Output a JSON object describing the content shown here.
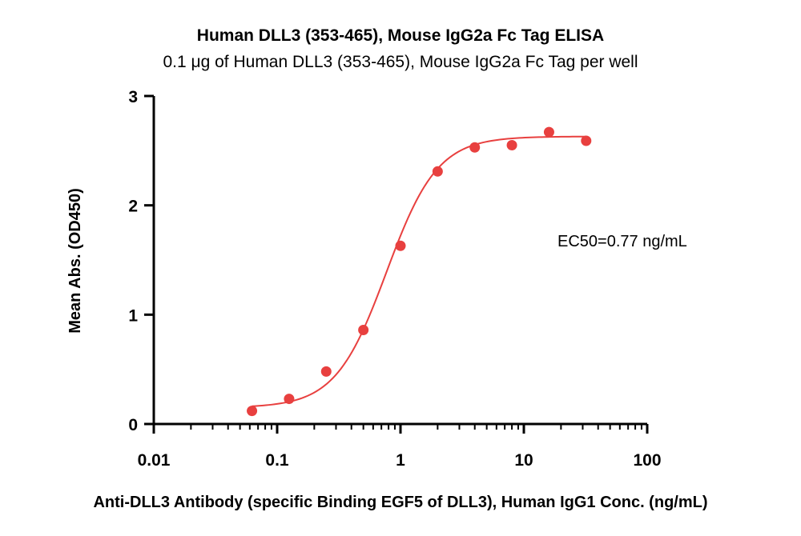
{
  "chart_data": {
    "type": "scatter",
    "title": "Human DLL3 (353-465), Mouse IgG2a Fc Tag ELISA",
    "subtitle": "0.1 μg of Human DLL3 (353-465), Mouse IgG2a Fc Tag per well",
    "xlabel": "Anti-DLL3 Antibody (specific Binding EGF5 of DLL3), Human IgG1 Conc. (ng/mL)",
    "ylabel": "Mean Abs. (OD450)",
    "x_scale": "log",
    "xlim": [
      0.01,
      100
    ],
    "ylim": [
      0,
      3
    ],
    "x_ticks": [
      "0.01",
      "0.1",
      "1",
      "10",
      "100"
    ],
    "y_ticks": [
      "0",
      "1",
      "2",
      "3"
    ],
    "series": [
      {
        "x": [
          0.0625,
          0.125,
          0.25,
          0.5,
          1,
          2,
          4,
          8,
          16,
          32
        ],
        "y": [
          0.12,
          0.23,
          0.48,
          0.86,
          1.63,
          2.31,
          2.53,
          2.55,
          2.67,
          2.59
        ]
      }
    ],
    "annotation": "EC50=0.77 ng/mL",
    "point_color": "#e8403f",
    "line_color": "#e8403f"
  }
}
